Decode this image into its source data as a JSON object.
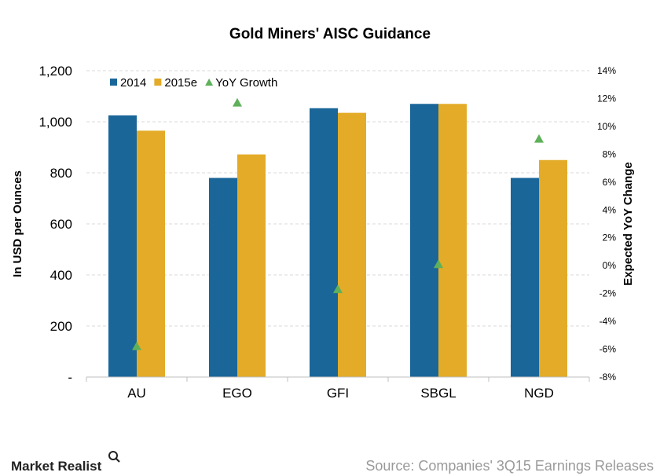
{
  "chart_data": {
    "type": "bar",
    "title": "Gold Miners' AISC Guidance",
    "categories": [
      "AU",
      "EGO",
      "GFI",
      "SBGL",
      "NGD"
    ],
    "series": [
      {
        "name": "2014",
        "axis": "left",
        "color": "#1a6699",
        "values": [
          1025,
          780,
          1053,
          1070,
          780
        ]
      },
      {
        "name": "2015e",
        "axis": "left",
        "color": "#e3ab27",
        "values": [
          965,
          872,
          1035,
          1070,
          850
        ]
      },
      {
        "name": "YoY Growth",
        "axis": "right",
        "type": "scatter",
        "marker": "triangle",
        "color": "#5fb05a",
        "values": [
          -5.8,
          11.7,
          -1.7,
          0.1,
          9.1
        ]
      }
    ],
    "ylabel": "In USD per Ounces",
    "ylabel_right": "Expected YoY Change",
    "ylim": [
      0,
      1200
    ],
    "yticks": [
      0,
      200,
      400,
      600,
      800,
      1000,
      1200
    ],
    "ytick_labels": [
      "-",
      "200",
      "400",
      "600",
      "800",
      "1,000",
      "1,200"
    ],
    "ylim_right": [
      -8,
      14
    ],
    "yticks_right": [
      -8,
      -6,
      -4,
      -2,
      0,
      2,
      4,
      6,
      8,
      10,
      12,
      14
    ],
    "ytick_labels_right": [
      "-8%",
      "-6%",
      "-4%",
      "-2%",
      "0%",
      "2%",
      "4%",
      "6%",
      "8%",
      "10%",
      "12%",
      "14%"
    ],
    "grid": true,
    "legend_position": "top-left"
  },
  "footer": {
    "logo_text": "Market Realist",
    "source": "Source: Companies' 3Q15 Earnings Releases"
  }
}
